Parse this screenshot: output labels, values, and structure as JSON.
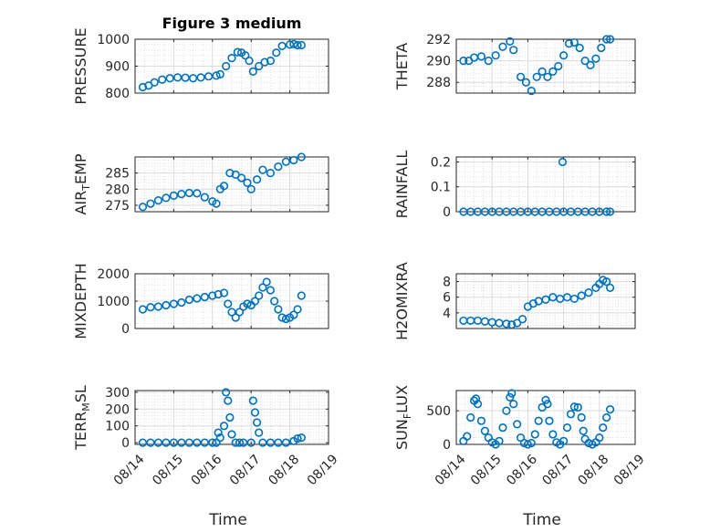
{
  "figure": {
    "title": "Figure 3 medium"
  },
  "chart_data": [
    {
      "type": "scatter",
      "name": "pressure",
      "ylabel": "PRESSURE",
      "title": "Figure 3 medium",
      "xlabel": "",
      "xlim": [
        0,
        5
      ],
      "ylim": [
        800,
        1000
      ],
      "yticks": [
        800,
        900,
        1000
      ],
      "xticks": [
        0,
        1,
        2,
        3,
        4,
        5
      ],
      "xticklabels": [
        "08/14",
        "08/15",
        "08/16",
        "08/17",
        "08/18",
        "08/19"
      ],
      "show_xticklabels": false,
      "x": [
        0.2,
        0.35,
        0.5,
        0.7,
        0.9,
        1.1,
        1.3,
        1.5,
        1.7,
        1.9,
        2.1,
        2.2,
        2.35,
        2.5,
        2.65,
        2.75,
        2.85,
        2.95,
        3.05,
        3.2,
        3.35,
        3.5,
        3.65,
        3.8,
        4.0,
        4.1,
        4.2,
        4.3
      ],
      "y": [
        822,
        828,
        840,
        850,
        855,
        858,
        857,
        855,
        858,
        862,
        865,
        870,
        900,
        930,
        952,
        950,
        940,
        920,
        880,
        900,
        915,
        920,
        950,
        975,
        980,
        982,
        978,
        978
      ]
    },
    {
      "type": "scatter",
      "name": "theta",
      "ylabel": "THETA",
      "title": "",
      "xlabel": "",
      "xlim": [
        0,
        5
      ],
      "ylim": [
        287,
        292
      ],
      "yticks": [
        288,
        290,
        292
      ],
      "xticks": [
        0,
        1,
        2,
        3,
        4,
        5
      ],
      "xticklabels": [
        "08/14",
        "08/15",
        "08/16",
        "08/17",
        "08/18",
        "08/19"
      ],
      "show_xticklabels": false,
      "x": [
        0.2,
        0.35,
        0.5,
        0.7,
        0.9,
        1.1,
        1.3,
        1.5,
        1.6,
        1.8,
        1.95,
        2.1,
        2.25,
        2.4,
        2.55,
        2.7,
        2.85,
        3.0,
        3.15,
        3.3,
        3.45,
        3.6,
        3.75,
        3.9,
        4.05,
        4.2,
        4.3
      ],
      "y": [
        290,
        290,
        290.3,
        290.4,
        290,
        290.5,
        291.3,
        291.8,
        291,
        288.5,
        288,
        287.2,
        288.5,
        289,
        288.5,
        289,
        289.5,
        290.5,
        291.6,
        291.7,
        291.2,
        290,
        289.6,
        290.2,
        291.2,
        292,
        292
      ]
    },
    {
      "type": "scatter",
      "name": "air_temp",
      "ylabel": "AIR",
      "ylabel_sub": "T",
      "ylabel_rest": "EMP",
      "title": "",
      "xlabel": "",
      "xlim": [
        0,
        5
      ],
      "ylim": [
        273,
        290
      ],
      "yticks": [
        275,
        280,
        285
      ],
      "xticks": [
        0,
        1,
        2,
        3,
        4,
        5
      ],
      "xticklabels": [
        "08/14",
        "08/15",
        "08/16",
        "08/17",
        "08/18",
        "08/19"
      ],
      "show_xticklabels": false,
      "x": [
        0.2,
        0.4,
        0.6,
        0.8,
        1.0,
        1.2,
        1.4,
        1.6,
        1.8,
        2.0,
        2.1,
        2.2,
        2.3,
        2.45,
        2.6,
        2.75,
        2.9,
        3.0,
        3.15,
        3.3,
        3.5,
        3.7,
        3.9,
        4.1,
        4.3
      ],
      "y": [
        274.5,
        275.5,
        276.5,
        277.3,
        278,
        278.5,
        278.8,
        278.7,
        277.5,
        276.2,
        275.5,
        280,
        281,
        285,
        284.5,
        283.5,
        282,
        280,
        283,
        286,
        285,
        287,
        288.5,
        289,
        290
      ]
    },
    {
      "type": "scatter",
      "name": "rainfall",
      "ylabel": "RAINFALL",
      "title": "",
      "xlabel": "",
      "xlim": [
        0,
        5
      ],
      "ylim": [
        0,
        0.22
      ],
      "yticks": [
        0,
        0.1,
        0.2
      ],
      "xticks": [
        0,
        1,
        2,
        3,
        4,
        5
      ],
      "xticklabels": [
        "08/14",
        "08/15",
        "08/16",
        "08/17",
        "08/18",
        "08/19"
      ],
      "show_xticklabels": false,
      "x": [
        0.2,
        0.4,
        0.6,
        0.8,
        1.0,
        1.2,
        1.4,
        1.6,
        1.8,
        2.0,
        2.2,
        2.4,
        2.6,
        2.8,
        2.97,
        3.0,
        3.2,
        3.4,
        3.6,
        3.8,
        4.0,
        4.2,
        4.3
      ],
      "y": [
        0,
        0,
        0,
        0,
        0,
        0,
        0,
        0,
        0,
        0,
        0,
        0,
        0,
        0,
        0.2,
        0,
        0,
        0,
        0,
        0,
        0,
        0,
        0
      ]
    },
    {
      "type": "scatter",
      "name": "mixdepth",
      "ylabel": "MIXDEPTH",
      "title": "",
      "xlabel": "",
      "xlim": [
        0,
        5
      ],
      "ylim": [
        0,
        2000
      ],
      "yticks": [
        0,
        1000,
        2000
      ],
      "xticks": [
        0,
        1,
        2,
        3,
        4,
        5
      ],
      "xticklabels": [
        "08/14",
        "08/15",
        "08/16",
        "08/17",
        "08/18",
        "08/19"
      ],
      "show_xticklabels": false,
      "x": [
        0.2,
        0.4,
        0.6,
        0.8,
        1.0,
        1.2,
        1.4,
        1.6,
        1.8,
        2.0,
        2.15,
        2.3,
        2.4,
        2.5,
        2.6,
        2.7,
        2.8,
        2.9,
        3.0,
        3.1,
        3.2,
        3.3,
        3.4,
        3.5,
        3.6,
        3.7,
        3.8,
        3.9,
        4.0,
        4.1,
        4.2,
        4.3
      ],
      "y": [
        700,
        780,
        800,
        850,
        900,
        950,
        1050,
        1100,
        1150,
        1200,
        1250,
        1300,
        900,
        600,
        400,
        600,
        800,
        900,
        850,
        1000,
        1200,
        1500,
        1700,
        1400,
        1000,
        700,
        400,
        350,
        400,
        500,
        700,
        1200
      ]
    },
    {
      "type": "scatter",
      "name": "h2omixra",
      "ylabel": "H2OMIXRA",
      "title": "",
      "xlabel": "",
      "xlim": [
        0,
        5
      ],
      "ylim": [
        2,
        9
      ],
      "yticks": [
        4,
        6,
        8
      ],
      "xticks": [
        0,
        1,
        2,
        3,
        4,
        5
      ],
      "xticklabels": [
        "08/14",
        "08/15",
        "08/16",
        "08/17",
        "08/18",
        "08/19"
      ],
      "show_xticklabels": false,
      "x": [
        0.2,
        0.4,
        0.6,
        0.8,
        1.0,
        1.2,
        1.4,
        1.55,
        1.7,
        1.85,
        2.0,
        2.15,
        2.3,
        2.5,
        2.7,
        2.9,
        3.1,
        3.3,
        3.5,
        3.7,
        3.9,
        4.0,
        4.1,
        4.2,
        4.3
      ],
      "y": [
        3,
        3,
        3,
        2.9,
        2.8,
        2.7,
        2.6,
        2.5,
        2.7,
        3.2,
        4.8,
        5.2,
        5.5,
        5.7,
        6,
        5.8,
        6,
        5.8,
        6.2,
        6.6,
        7.2,
        7.7,
        8.2,
        8.0,
        7.2
      ]
    },
    {
      "type": "scatter",
      "name": "terr_msl",
      "ylabel": "TERR",
      "ylabel_sub": "M",
      "ylabel_rest": "SL",
      "title": "",
      "xlabel": "Time",
      "xlim": [
        0,
        5
      ],
      "ylim": [
        -10,
        310
      ],
      "yticks": [
        0,
        100,
        200,
        300
      ],
      "xticks": [
        0,
        1,
        2,
        3,
        4,
        5
      ],
      "xticklabels": [
        "08/14",
        "08/15",
        "08/16",
        "08/17",
        "08/18",
        "08/19"
      ],
      "show_xticklabels": true,
      "x": [
        0.2,
        0.4,
        0.6,
        0.8,
        1.0,
        1.2,
        1.4,
        1.6,
        1.8,
        2.0,
        2.1,
        2.15,
        2.2,
        2.3,
        2.35,
        2.4,
        2.45,
        2.5,
        2.6,
        2.7,
        2.8,
        3.0,
        3.05,
        3.1,
        3.15,
        3.2,
        3.3,
        3.5,
        3.7,
        3.9,
        4.1,
        4.2,
        4.3
      ],
      "y": [
        0,
        0,
        0,
        0,
        0,
        0,
        0,
        0,
        0,
        0,
        0,
        60,
        30,
        100,
        300,
        250,
        150,
        50,
        0,
        0,
        0,
        0,
        250,
        180,
        120,
        60,
        0,
        0,
        0,
        0,
        10,
        25,
        30
      ]
    },
    {
      "type": "scatter",
      "name": "sun_flux",
      "ylabel": "SUN",
      "ylabel_sub": "F",
      "ylabel_rest": "LUX",
      "title": "",
      "xlabel": "Time",
      "xlim": [
        0,
        5
      ],
      "ylim": [
        0,
        800
      ],
      "yticks": [
        0,
        500
      ],
      "xticks": [
        0,
        1,
        2,
        3,
        4,
        5
      ],
      "xticklabels": [
        "08/14",
        "08/15",
        "08/16",
        "08/17",
        "08/18",
        "08/19"
      ],
      "show_xticklabels": true,
      "x": [
        0.2,
        0.3,
        0.4,
        0.5,
        0.55,
        0.6,
        0.7,
        0.8,
        0.9,
        1.0,
        1.1,
        1.2,
        1.3,
        1.4,
        1.5,
        1.55,
        1.6,
        1.7,
        1.8,
        1.9,
        2.0,
        2.1,
        2.2,
        2.3,
        2.4,
        2.5,
        2.55,
        2.6,
        2.7,
        2.8,
        2.9,
        3.0,
        3.1,
        3.2,
        3.3,
        3.4,
        3.5,
        3.55,
        3.6,
        3.7,
        3.8,
        3.9,
        4.0,
        4.1,
        4.2,
        4.3
      ],
      "y": [
        50,
        120,
        400,
        650,
        680,
        600,
        350,
        200,
        100,
        30,
        0,
        50,
        250,
        500,
        700,
        760,
        600,
        300,
        100,
        20,
        0,
        20,
        150,
        350,
        550,
        660,
        600,
        350,
        150,
        30,
        0,
        50,
        250,
        450,
        560,
        550,
        400,
        200,
        80,
        20,
        0,
        30,
        100,
        250,
        400,
        520
      ]
    }
  ]
}
